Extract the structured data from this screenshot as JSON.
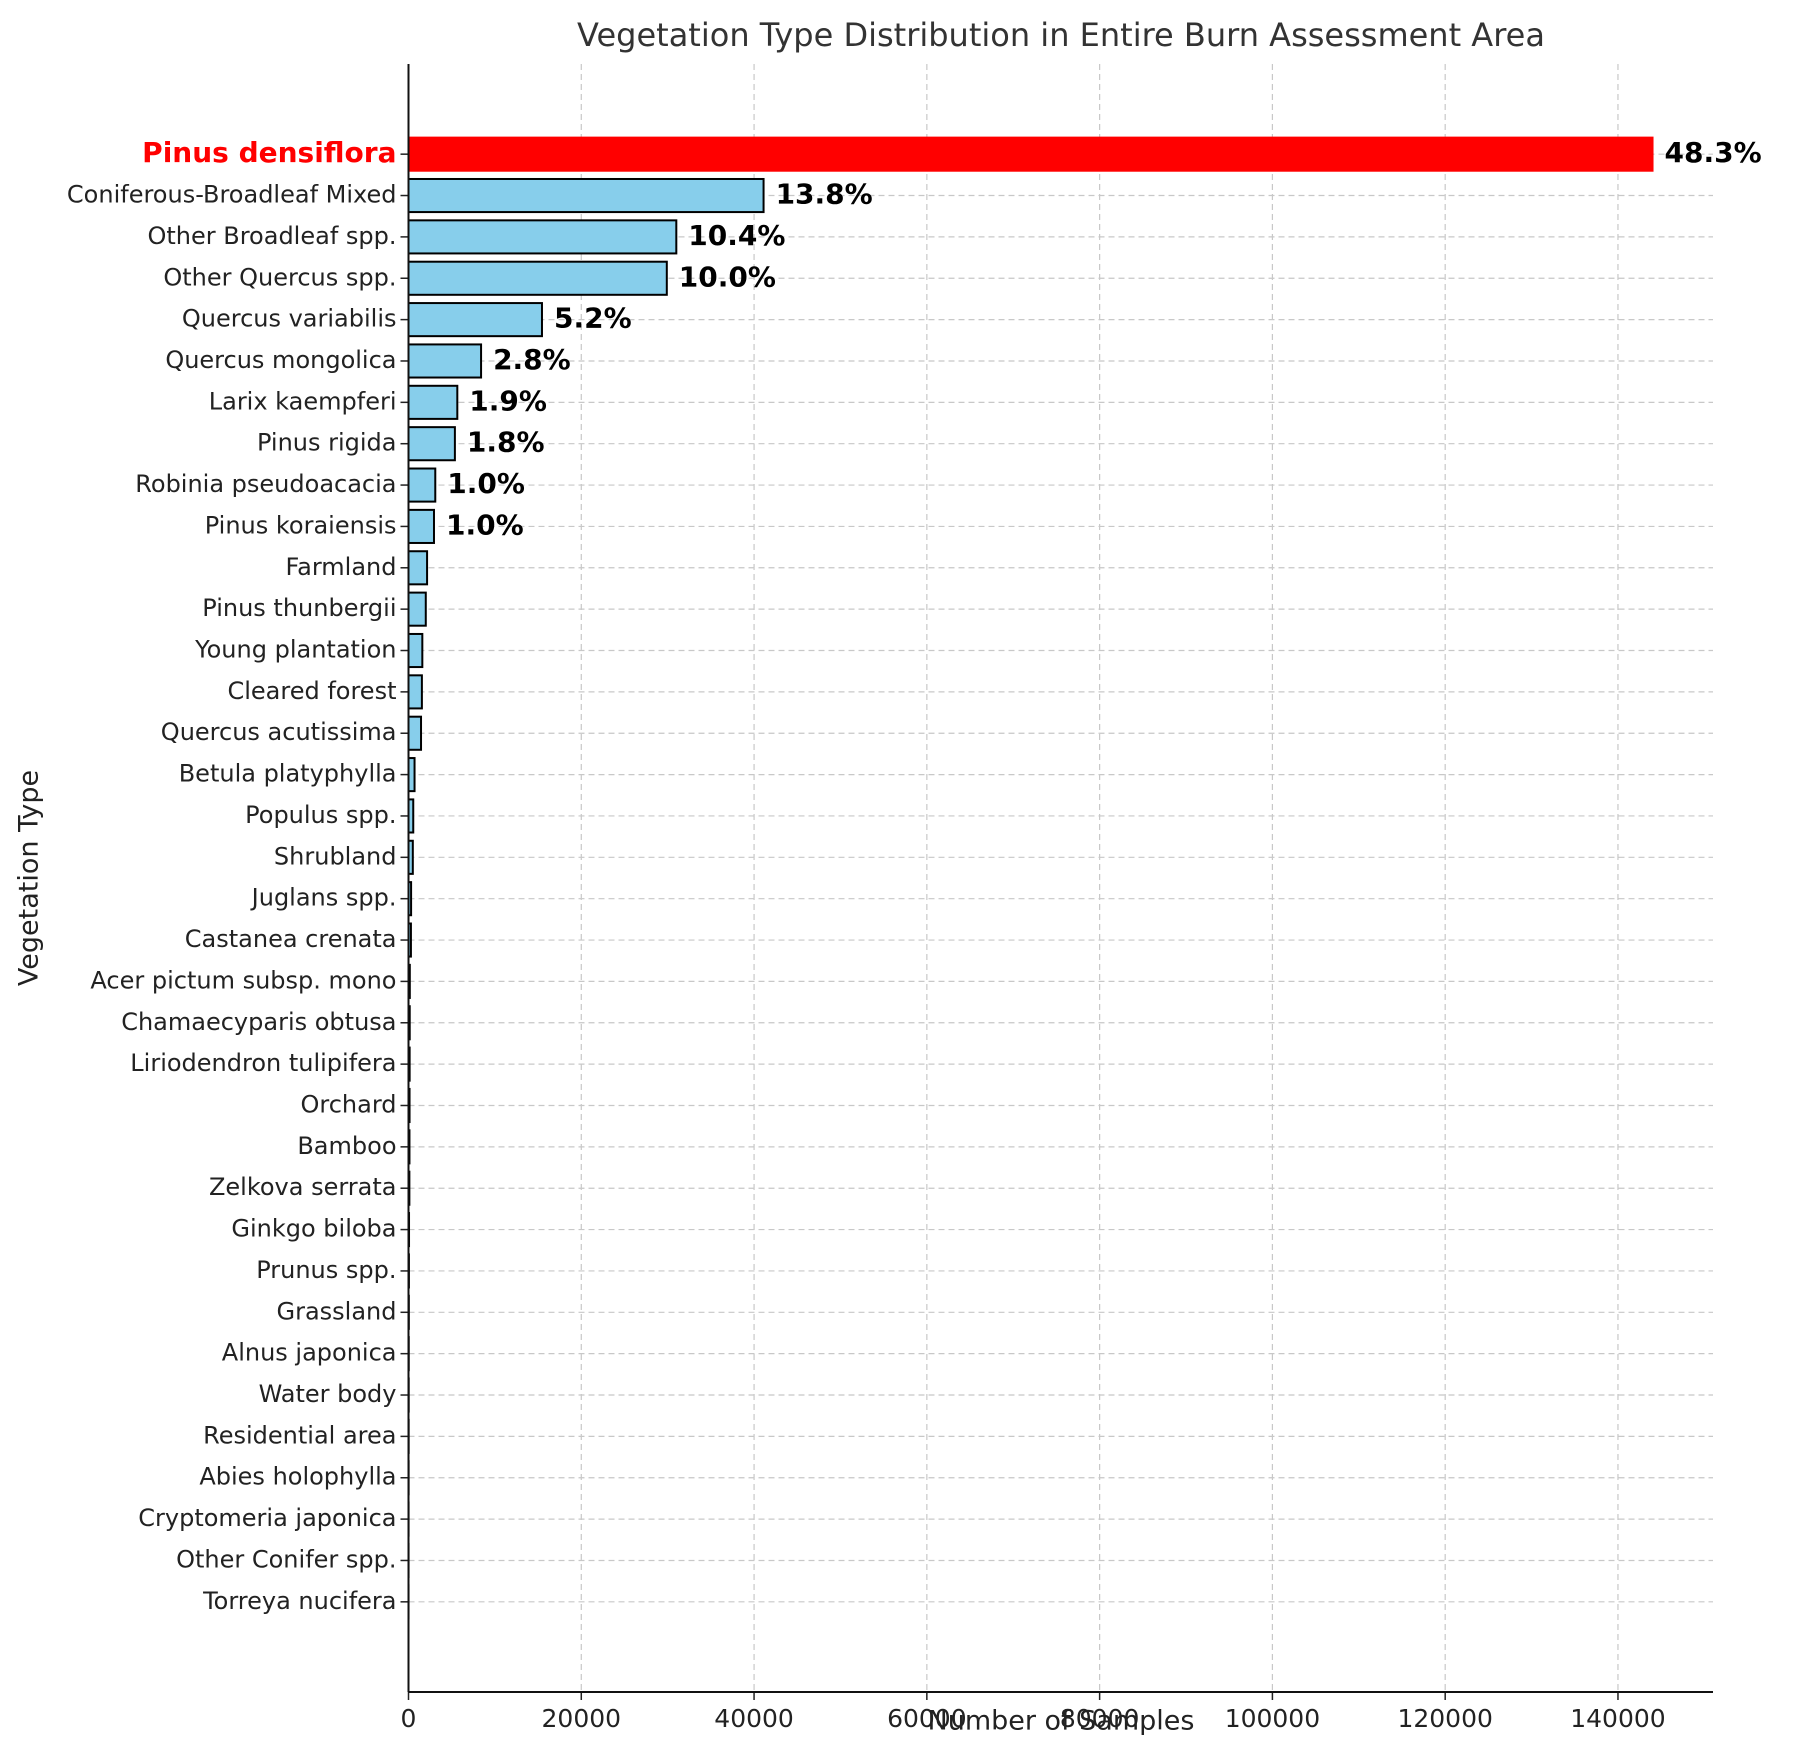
{
  "chart_data": {
    "type": "bar",
    "orientation": "horizontal",
    "title": "Vegetation Type Distribution in Entire Burn Assessment Area",
    "x_label": "Number of Samples",
    "y_label": "Vegetation Type",
    "categories": [
      "Pinus densiflora",
      "Coniferous-Broadleaf Mixed",
      "Other Broadleaf spp.",
      "Other Quercus spp.",
      "Quercus variabilis",
      "Quercus mongolica",
      "Larix kaempferi",
      "Pinus rigida",
      "Robinia pseudoacacia",
      "Pinus koraiensis",
      "Farmland",
      "Pinus thunbergii",
      "Young plantation",
      "Cleared forest",
      "Quercus acutissima",
      "Betula platyphylla",
      "Populus spp.",
      "Shrubland",
      "Juglans spp.",
      "Castanea crenata",
      "Acer pictum subsp. mono",
      "Chamaecyparis obtusa",
      "Liriodendron tulipifera",
      "Orchard",
      "Bamboo",
      "Zelkova serrata",
      "Ginkgo biloba",
      "Prunus spp.",
      "Grassland",
      "Alnus japonica",
      "Water body",
      "Residential area",
      "Abies holophylla",
      "Cryptomeria japonica",
      "Other Conifer spp.",
      "Torreya nucifera"
    ],
    "values": [
      144000,
      41100,
      31000,
      29900,
      15450,
      8400,
      5650,
      5370,
      3100,
      2950,
      2150,
      2000,
      1600,
      1550,
      1450,
      700,
      550,
      500,
      300,
      280,
      150,
      140,
      130,
      120,
      110,
      100,
      60,
      50,
      40,
      30,
      25,
      20,
      15,
      10,
      8,
      5
    ],
    "share_labels": [
      "48.3%",
      "13.8%",
      "10.4%",
      "10.0%",
      "5.2%",
      "2.8%",
      "1.9%",
      "1.8%",
      "1.0%",
      "1.0%"
    ],
    "color": "#87ceeb",
    "colors": [
      "#ff0000",
      "#87ceeb",
      "#87ceeb",
      "#87ceeb",
      "#87ceeb",
      "#87ceeb",
      "#87ceeb",
      "#87ceeb",
      "#87ceeb",
      "#87ceeb",
      "#87ceeb",
      "#87ceeb",
      "#87ceeb",
      "#87ceeb",
      "#87ceeb",
      "#87ceeb",
      "#87ceeb",
      "#87ceeb",
      "#87ceeb",
      "#87ceeb",
      "#87ceeb",
      "#87ceeb",
      "#87ceeb",
      "#87ceeb",
      "#87ceeb",
      "#87ceeb",
      "#87ceeb",
      "#87ceeb",
      "#87ceeb",
      "#87ceeb",
      "#87ceeb",
      "#87ceeb",
      "#87ceeb",
      "#87ceeb",
      "#87ceeb",
      "#87ceeb"
    ],
    "xlim": [
      0,
      151000
    ],
    "xticks": [
      0,
      20000,
      40000,
      60000,
      80000,
      100000,
      120000,
      140000
    ],
    "grid": true
  }
}
